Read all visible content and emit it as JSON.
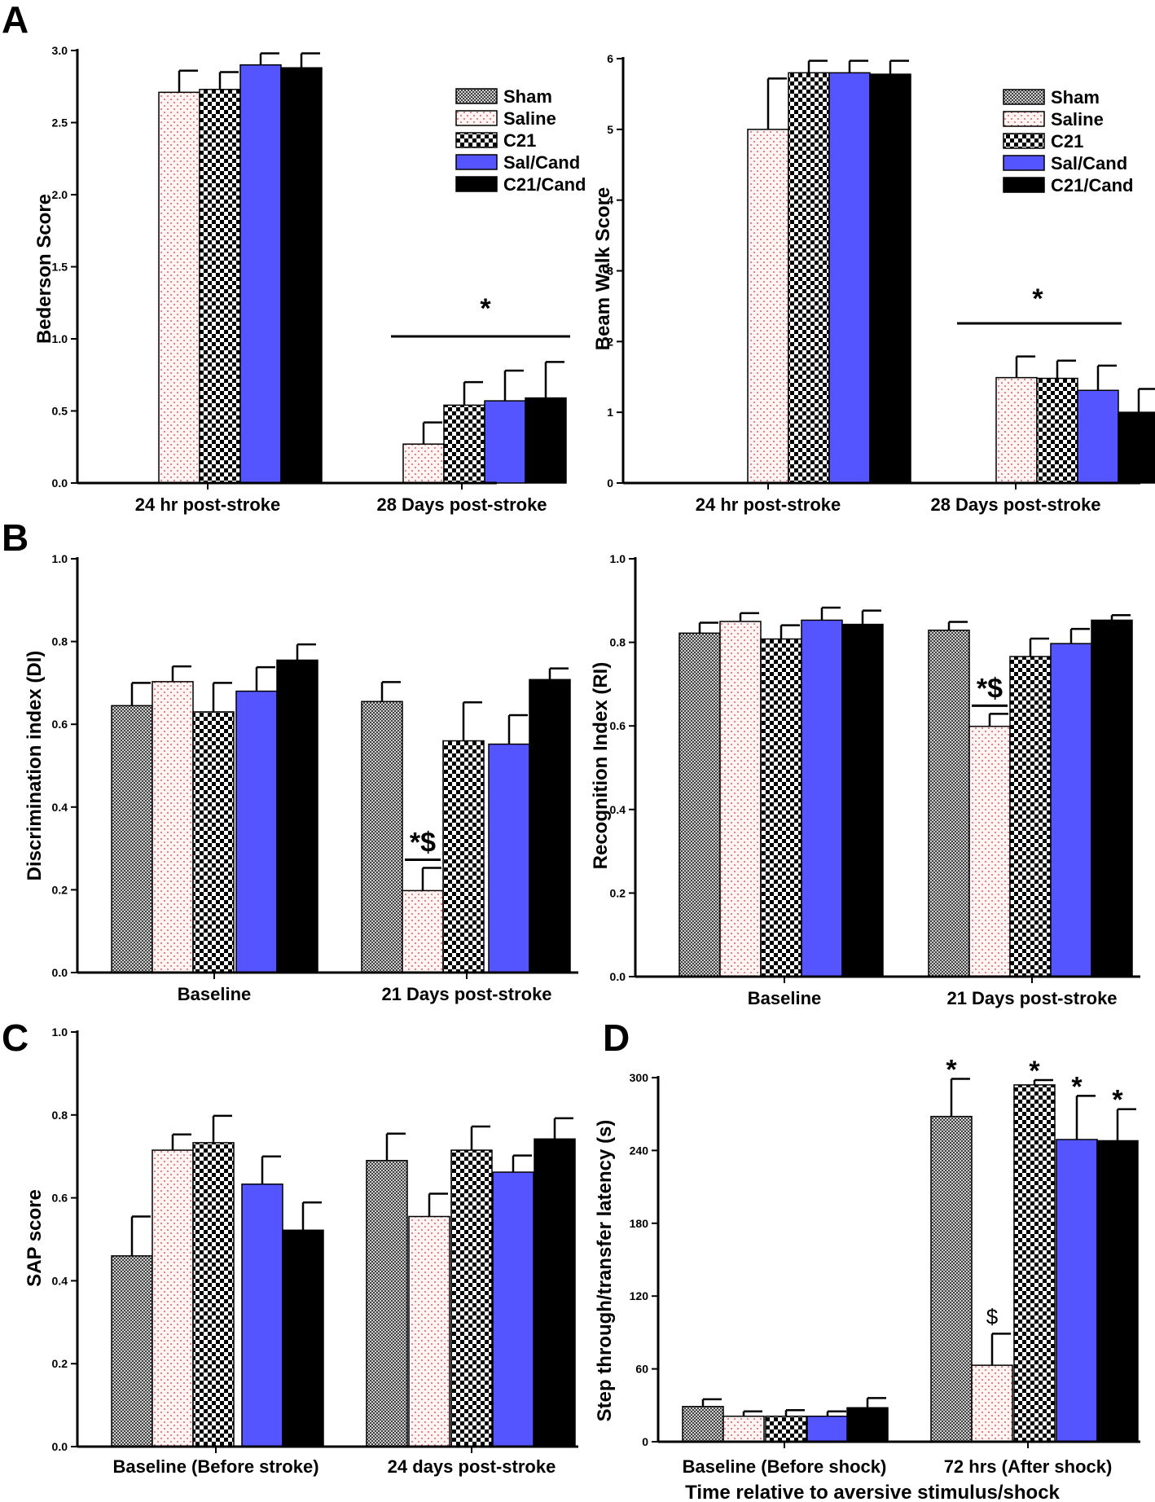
{
  "groups": [
    {
      "name": "Sham",
      "fill": "pattern-sham"
    },
    {
      "name": "Saline",
      "fill": "pattern-saline"
    },
    {
      "name": "C21",
      "fill": "pattern-c21"
    },
    {
      "name": "Sal/Cand",
      "fill": "#5555ff"
    },
    {
      "name": "C21/Cand",
      "fill": "#000000"
    }
  ],
  "colors": {
    "blue": "#5555ff",
    "black": "#000000",
    "saline_dot": "#e03030"
  },
  "chart_data": [
    {
      "id": "A1",
      "type": "bar",
      "panel_letter": "A",
      "ylabel": "Bederson Score",
      "xlabel": "",
      "ylim": [
        0,
        3.0
      ],
      "yticks": [
        "0.0",
        "0.5",
        "1.0",
        "1.5",
        "2.0",
        "2.5",
        "3.0"
      ],
      "ytick_values": [
        0,
        0.5,
        1.0,
        1.5,
        2.0,
        2.5,
        3.0
      ],
      "categories": [
        "24 hr post-stroke",
        "28 Days post-stroke"
      ],
      "legend": true,
      "series": [
        {
          "name": "Sham",
          "values": [
            null,
            null
          ],
          "errors": [
            null,
            null
          ]
        },
        {
          "name": "Saline",
          "values": [
            2.71,
            0.27
          ],
          "errors": [
            0.15,
            0.15
          ]
        },
        {
          "name": "C21",
          "values": [
            2.73,
            0.54
          ],
          "errors": [
            0.12,
            0.16
          ]
        },
        {
          "name": "Sal/Cand",
          "values": [
            2.9,
            0.57
          ],
          "errors": [
            0.08,
            0.21
          ]
        },
        {
          "name": "C21/Cand",
          "values": [
            2.88,
            0.59
          ],
          "errors": [
            0.1,
            0.25
          ]
        }
      ],
      "significance": [
        {
          "category": 1,
          "label": "*",
          "type": "line"
        }
      ]
    },
    {
      "id": "A2",
      "type": "bar",
      "panel_letter": "",
      "ylabel": "Beam Walk Score",
      "xlabel": "",
      "ylim": [
        0,
        6
      ],
      "yticks": [
        "0",
        "1",
        "2",
        "3",
        "4",
        "5",
        "6"
      ],
      "ytick_values": [
        0,
        1,
        2,
        3,
        4,
        5,
        6
      ],
      "categories": [
        "24 hr post-stroke",
        "28 Days post-stroke"
      ],
      "legend": true,
      "series": [
        {
          "name": "Sham",
          "values": [
            null,
            null
          ],
          "errors": [
            null,
            null
          ]
        },
        {
          "name": "Saline",
          "values": [
            5.0,
            1.49
          ],
          "errors": [
            0.72,
            0.3
          ]
        },
        {
          "name": "C21",
          "values": [
            5.8,
            1.48
          ],
          "errors": [
            0.17,
            0.25
          ]
        },
        {
          "name": "Sal/Cand",
          "values": [
            5.8,
            1.31
          ],
          "errors": [
            0.17,
            0.35
          ]
        },
        {
          "name": "C21/Cand",
          "values": [
            5.78,
            1.0
          ],
          "errors": [
            0.19,
            0.33
          ]
        }
      ],
      "significance": [
        {
          "category": 1,
          "label": "*",
          "type": "line"
        }
      ]
    },
    {
      "id": "B1",
      "type": "bar",
      "panel_letter": "B",
      "ylabel": "Discrimination index (DI)",
      "xlabel": "",
      "ylim": [
        0,
        1.0
      ],
      "yticks": [
        "0.0",
        "0.2",
        "0.4",
        "0.6",
        "0.8",
        "1.0"
      ],
      "ytick_values": [
        0,
        0.2,
        0.4,
        0.6,
        0.8,
        1.0
      ],
      "categories": [
        "Baseline",
        "21 Days post-stroke"
      ],
      "legend": false,
      "series": [
        {
          "name": "Sham",
          "values": [
            0.645,
            0.655
          ],
          "errors": [
            0.055,
            0.047
          ]
        },
        {
          "name": "Saline",
          "values": [
            0.703,
            0.198
          ],
          "errors": [
            0.037,
            0.055
          ]
        },
        {
          "name": "C21",
          "values": [
            0.63,
            0.56
          ],
          "errors": [
            0.07,
            0.093
          ]
        },
        {
          "name": "Sal/Cand",
          "values": [
            0.68,
            0.552
          ],
          "errors": [
            0.058,
            0.07
          ]
        },
        {
          "name": "C21/Cand",
          "values": [
            0.755,
            0.708
          ],
          "errors": [
            0.038,
            0.027
          ]
        }
      ],
      "significance": [
        {
          "category": 1,
          "series": 1,
          "label": "*$",
          "type": "bar"
        }
      ]
    },
    {
      "id": "B2",
      "type": "bar",
      "panel_letter": "",
      "ylabel": "Recognition Index (RI)",
      "xlabel": "",
      "ylim": [
        0,
        1.0
      ],
      "yticks": [
        "0.0",
        "0.2",
        "0.4",
        "0.6",
        "0.8",
        "1.0"
      ],
      "ytick_values": [
        0,
        0.2,
        0.4,
        0.6,
        0.8,
        1.0
      ],
      "categories": [
        "Baseline",
        "21 Days post-stroke"
      ],
      "legend": false,
      "series": [
        {
          "name": "Sham",
          "values": [
            0.822,
            0.829
          ],
          "errors": [
            0.025,
            0.02
          ]
        },
        {
          "name": "Saline",
          "values": [
            0.85,
            0.599
          ],
          "errors": [
            0.02,
            0.03
          ]
        },
        {
          "name": "C21",
          "values": [
            0.808,
            0.766
          ],
          "errors": [
            0.033,
            0.043
          ]
        },
        {
          "name": "Sal/Cand",
          "values": [
            0.853,
            0.797
          ],
          "errors": [
            0.03,
            0.035
          ]
        },
        {
          "name": "C21/Cand",
          "values": [
            0.843,
            0.853
          ],
          "errors": [
            0.033,
            0.012
          ]
        }
      ],
      "significance": [
        {
          "category": 1,
          "series": 1,
          "label": "*$",
          "type": "bar"
        }
      ]
    },
    {
      "id": "C",
      "type": "bar",
      "panel_letter": "C",
      "ylabel": "SAP score",
      "xlabel": "",
      "ylim": [
        0,
        1.0
      ],
      "yticks": [
        "0.0",
        "0.2",
        "0.4",
        "0.6",
        "0.8",
        "1.0"
      ],
      "ytick_values": [
        0,
        0.2,
        0.4,
        0.6,
        0.8,
        1.0
      ],
      "categories": [
        "Baseline (Before stroke)",
        "24 days post-stroke"
      ],
      "legend": false,
      "series": [
        {
          "name": "Sham",
          "values": [
            0.46,
            0.69
          ],
          "errors": [
            0.095,
            0.065
          ]
        },
        {
          "name": "Saline",
          "values": [
            0.715,
            0.555
          ],
          "errors": [
            0.038,
            0.055
          ]
        },
        {
          "name": "C21",
          "values": [
            0.733,
            0.715
          ],
          "errors": [
            0.065,
            0.057
          ]
        },
        {
          "name": "Sal/Cand",
          "values": [
            0.633,
            0.662
          ],
          "errors": [
            0.067,
            0.04
          ]
        },
        {
          "name": "C21/Cand",
          "values": [
            0.522,
            0.742
          ],
          "errors": [
            0.067,
            0.05
          ]
        }
      ],
      "significance": []
    },
    {
      "id": "D",
      "type": "bar",
      "panel_letter": "D",
      "ylabel": "Step through/transfer latency (s)",
      "xlabel": "Time relative to aversive stimulus/shock",
      "ylim": [
        0,
        300
      ],
      "yticks": [
        "0",
        "60",
        "120",
        "180",
        "240",
        "300"
      ],
      "ytick_values": [
        0,
        60,
        120,
        180,
        240,
        300
      ],
      "categories": [
        "Baseline (Before shock)",
        "72 hrs (After shock)"
      ],
      "legend": false,
      "series": [
        {
          "name": "Sham",
          "values": [
            29,
            268
          ],
          "errors": [
            6,
            31
          ]
        },
        {
          "name": "Saline",
          "values": [
            21,
            63
          ],
          "errors": [
            4,
            26
          ]
        },
        {
          "name": "C21",
          "values": [
            21,
            294
          ],
          "errors": [
            5,
            4
          ]
        },
        {
          "name": "Sal/Cand",
          "values": [
            21,
            249
          ],
          "errors": [
            4,
            36
          ]
        },
        {
          "name": "C21/Cand",
          "values": [
            28,
            248
          ],
          "errors": [
            8,
            26
          ]
        }
      ],
      "significance": [
        {
          "category": 1,
          "series": 0,
          "label": "*",
          "type": "star"
        },
        {
          "category": 1,
          "series": 1,
          "label": "$",
          "type": "star"
        },
        {
          "category": 1,
          "series": 2,
          "label": "*",
          "type": "star"
        },
        {
          "category": 1,
          "series": 3,
          "label": "*",
          "type": "star"
        },
        {
          "category": 1,
          "series": 4,
          "label": "*",
          "type": "star"
        }
      ]
    }
  ]
}
